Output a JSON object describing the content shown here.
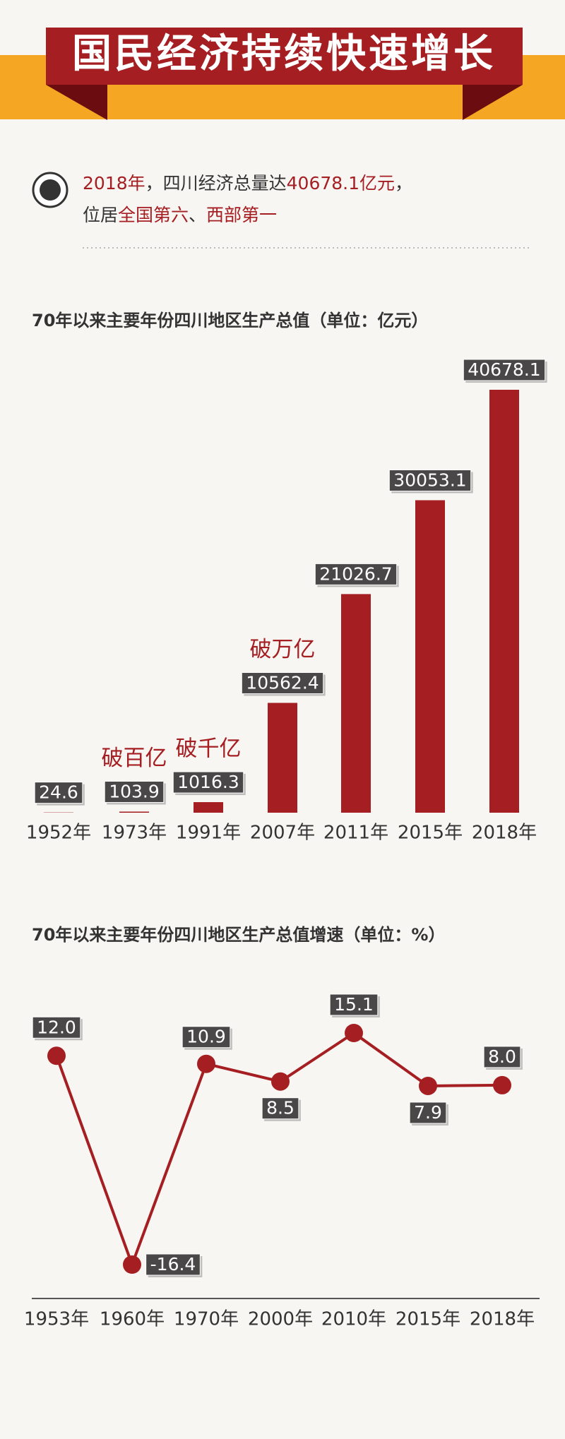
{
  "header": {
    "title": "国民经济持续快速增长"
  },
  "intro": {
    "line1": [
      "2018年",
      "，四川经济总量达",
      "40678.1亿元",
      "，"
    ],
    "line2": [
      "位居",
      "全国第六",
      "、",
      "西部第一"
    ]
  },
  "chart_data": [
    {
      "type": "bar",
      "title": "70年以来主要年份四川地区生产总值（单位：亿元）",
      "categories": [
        "1952年",
        "1973年",
        "1991年",
        "2007年",
        "2011年",
        "2015年",
        "2018年"
      ],
      "values": [
        24.6,
        103.9,
        1016.3,
        10562.4,
        21026.7,
        30053.1,
        40678.1
      ],
      "color": "#a51e22",
      "annotations": [
        {
          "x": "1973年",
          "text": "破百亿"
        },
        {
          "x": "1991年",
          "text": "破千亿"
        },
        {
          "x": "2007年",
          "text": "破万亿"
        }
      ]
    },
    {
      "type": "line",
      "title": "70年以来主要年份四川地区生产总值增速（单位：%）",
      "categories": [
        "1953年",
        "1960年",
        "1970年",
        "2000年",
        "2010年",
        "2015年",
        "2018年"
      ],
      "values": [
        12.0,
        -16.4,
        10.9,
        8.5,
        15.1,
        7.9,
        8.0
      ],
      "value_labels": [
        "12.0",
        "-16.4",
        "10.9",
        "8.5",
        "15.1",
        "7.9",
        "8.0"
      ],
      "color": "#a51e22"
    }
  ]
}
